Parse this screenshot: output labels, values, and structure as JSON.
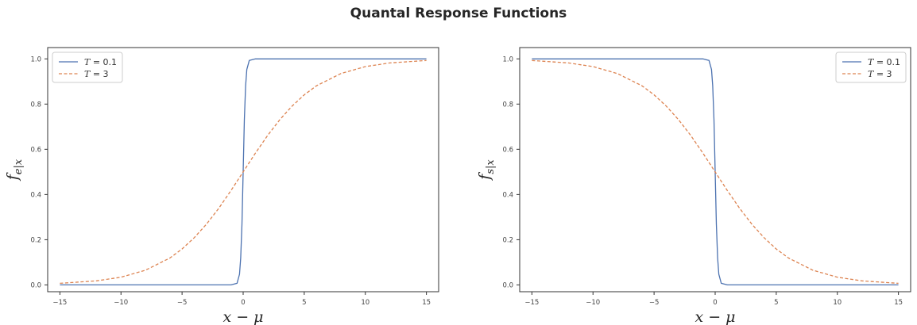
{
  "figure": {
    "suptitle": "Quantal Response Functions"
  },
  "chart_data": [
    {
      "type": "line",
      "title": "",
      "xlabel_main": "x − μ",
      "ylabel_main": "f",
      "ylabel_sub": "e|x",
      "xlim": [
        -16,
        16
      ],
      "ylim": [
        -0.03,
        1.05
      ],
      "xticks": [
        -15,
        -10,
        -5,
        0,
        5,
        10,
        15
      ],
      "xtick_labels": [
        "−15",
        "−10",
        "−5",
        "0",
        "5",
        "10",
        "15"
      ],
      "yticks": [
        0.0,
        0.2,
        0.4,
        0.6,
        0.8,
        1.0
      ],
      "ytick_labels": [
        "0.0",
        "0.2",
        "0.4",
        "0.6",
        "0.8",
        "1.0"
      ],
      "grid": false,
      "legend_position": "top-left",
      "series": [
        {
          "name": "T = 0.1",
          "name_var": "T",
          "name_rest": " = 0.1",
          "color": "#4c72b0",
          "style": "solid",
          "x": [
            -15,
            -5,
            -1,
            -0.5,
            -0.3,
            -0.2,
            -0.1,
            0,
            0.1,
            0.2,
            0.3,
            0.5,
            1,
            5,
            15
          ],
          "values": [
            0.0,
            0.0,
            0.0,
            0.007,
            0.047,
            0.119,
            0.269,
            0.5,
            0.731,
            0.881,
            0.953,
            0.993,
            1.0,
            1.0,
            1.0
          ]
        },
        {
          "name": "T = 3",
          "name_var": "T",
          "name_rest": " = 3",
          "color": "#dd8452",
          "style": "dashed",
          "x": [
            -15,
            -12,
            -10,
            -8,
            -6,
            -5,
            -4,
            -3,
            -2,
            -1,
            0,
            1,
            2,
            3,
            4,
            5,
            6,
            8,
            10,
            12,
            15
          ],
          "values": [
            0.007,
            0.018,
            0.034,
            0.065,
            0.119,
            0.159,
            0.209,
            0.269,
            0.339,
            0.417,
            0.5,
            0.583,
            0.661,
            0.731,
            0.791,
            0.841,
            0.881,
            0.935,
            0.966,
            0.982,
            0.993
          ]
        }
      ]
    },
    {
      "type": "line",
      "title": "",
      "xlabel_main": "x − μ",
      "ylabel_main": "f",
      "ylabel_sub": "s|x",
      "xlim": [
        -16,
        16
      ],
      "ylim": [
        -0.03,
        1.05
      ],
      "xticks": [
        -15,
        -10,
        -5,
        0,
        5,
        10,
        15
      ],
      "xtick_labels": [
        "−15",
        "−10",
        "−5",
        "0",
        "5",
        "10",
        "15"
      ],
      "yticks": [
        0.0,
        0.2,
        0.4,
        0.6,
        0.8,
        1.0
      ],
      "ytick_labels": [
        "0.0",
        "0.2",
        "0.4",
        "0.6",
        "0.8",
        "1.0"
      ],
      "grid": false,
      "legend_position": "top-right",
      "series": [
        {
          "name": "T = 0.1",
          "name_var": "T",
          "name_rest": " = 0.1",
          "color": "#4c72b0",
          "style": "solid",
          "x": [
            -15,
            -5,
            -1,
            -0.5,
            -0.3,
            -0.2,
            -0.1,
            0,
            0.1,
            0.2,
            0.3,
            0.5,
            1,
            5,
            15
          ],
          "values": [
            1.0,
            1.0,
            1.0,
            0.993,
            0.953,
            0.881,
            0.731,
            0.5,
            0.269,
            0.119,
            0.047,
            0.007,
            0.0,
            0.0,
            0.0
          ]
        },
        {
          "name": "T = 3",
          "name_var": "T",
          "name_rest": " = 3",
          "color": "#dd8452",
          "style": "dashed",
          "x": [
            -15,
            -12,
            -10,
            -8,
            -6,
            -5,
            -4,
            -3,
            -2,
            -1,
            0,
            1,
            2,
            3,
            4,
            5,
            6,
            8,
            10,
            12,
            15
          ],
          "values": [
            0.993,
            0.982,
            0.966,
            0.935,
            0.881,
            0.841,
            0.791,
            0.731,
            0.661,
            0.583,
            0.5,
            0.417,
            0.339,
            0.269,
            0.209,
            0.159,
            0.119,
            0.065,
            0.034,
            0.018,
            0.007
          ]
        }
      ]
    }
  ]
}
